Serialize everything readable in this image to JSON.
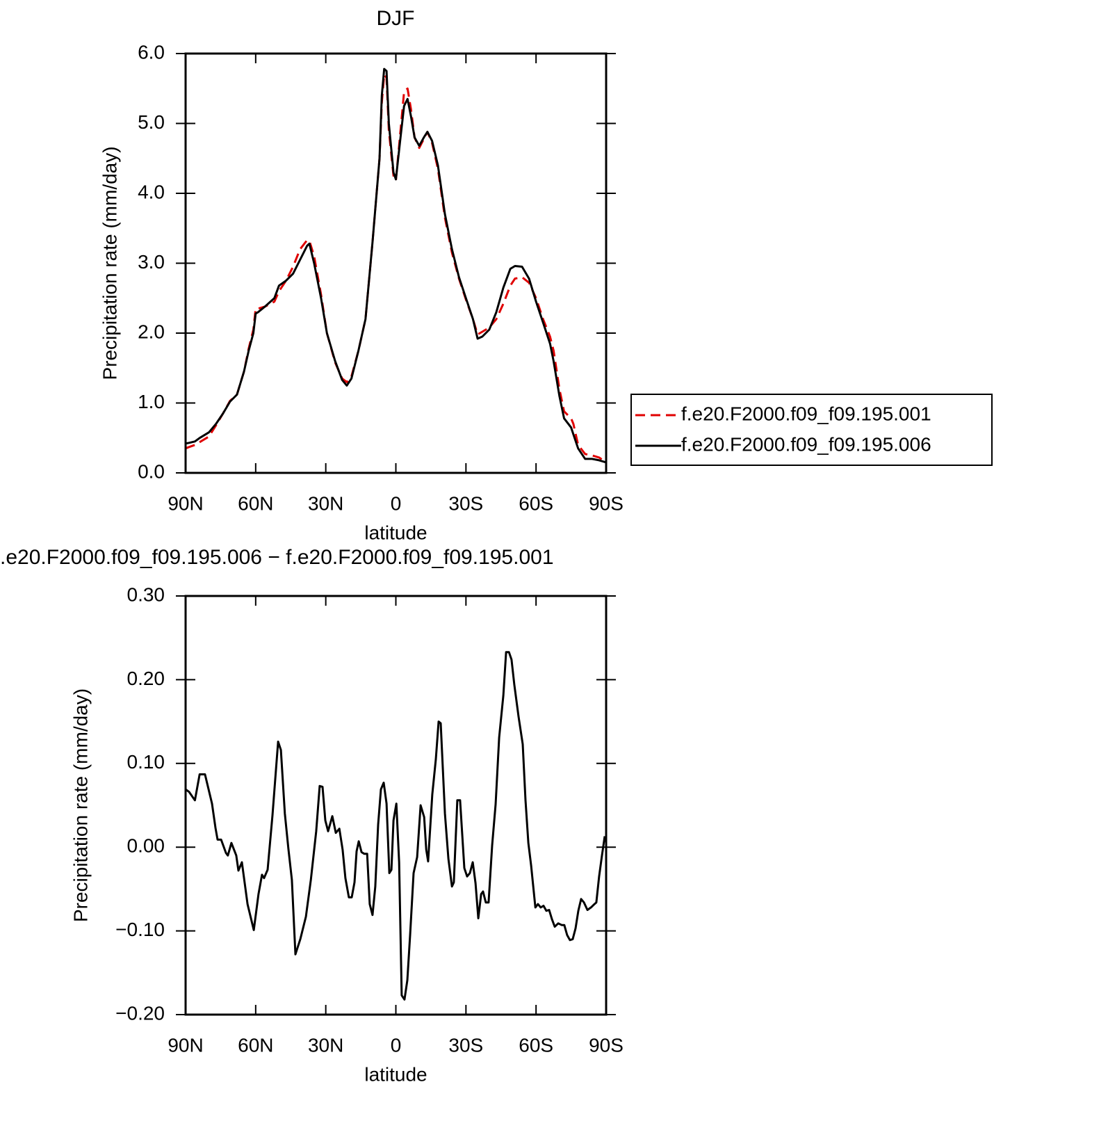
{
  "chart_data": [
    {
      "type": "line",
      "title": "DJF",
      "xlabel": "latitude",
      "ylabel": "Precipitation rate (mm/day)",
      "x": [
        90,
        88.5,
        86,
        84,
        80,
        77,
        74,
        71,
        68,
        65,
        63,
        61,
        60,
        59,
        56,
        52,
        50,
        47,
        44,
        41,
        38,
        37,
        35,
        32,
        29.5,
        26,
        23,
        21,
        19,
        16,
        13,
        10,
        7,
        6,
        5,
        4,
        3,
        1,
        0,
        -2,
        -3.5,
        -5,
        -6.5,
        -8,
        -10,
        -12,
        -13.5,
        -15.5,
        -18,
        -21,
        -24,
        -27,
        -30,
        -33,
        -35,
        -37,
        -40,
        -43,
        -46,
        -49,
        -51,
        -54,
        -57,
        -60,
        -63,
        -66,
        -67.5,
        -70,
        -72,
        -75,
        -76,
        -78,
        -81,
        -84,
        -87,
        -90
      ],
      "series": [
        {
          "name": "f.e20.F2000.f09_f09.195.001",
          "color": "#e00000",
          "dashed": true,
          "values": [
            0.35,
            0.37,
            0.4,
            0.44,
            0.52,
            0.68,
            0.85,
            1.03,
            1.12,
            1.45,
            1.78,
            2.05,
            2.35,
            2.35,
            2.38,
            2.45,
            2.6,
            2.75,
            2.95,
            3.2,
            3.33,
            3.32,
            3.1,
            2.55,
            2.0,
            1.58,
            1.35,
            1.3,
            1.38,
            1.75,
            2.2,
            3.3,
            4.5,
            5.3,
            5.7,
            5.65,
            4.9,
            4.25,
            4.18,
            4.9,
            5.45,
            5.5,
            5.2,
            4.8,
            4.65,
            4.78,
            4.88,
            4.72,
            4.35,
            3.65,
            3.15,
            2.78,
            2.48,
            2.2,
            1.98,
            2.02,
            2.08,
            2.2,
            2.42,
            2.68,
            2.78,
            2.8,
            2.72,
            2.5,
            2.2,
            1.95,
            1.75,
            1.2,
            0.88,
            0.78,
            0.7,
            0.4,
            0.27,
            0.25,
            0.22,
            0.15
          ]
        },
        {
          "name": "f.e20.F2000.f09_f09.195.006",
          "color": "#000000",
          "dashed": false,
          "values": [
            0.42,
            0.43,
            0.45,
            0.5,
            0.58,
            0.7,
            0.85,
            1.02,
            1.12,
            1.45,
            1.75,
            2.0,
            2.28,
            2.3,
            2.38,
            2.5,
            2.68,
            2.75,
            2.85,
            3.05,
            3.25,
            3.28,
            3.0,
            2.5,
            2.0,
            1.6,
            1.33,
            1.25,
            1.35,
            1.75,
            2.2,
            3.3,
            4.5,
            5.4,
            5.78,
            5.75,
            5.0,
            4.3,
            4.2,
            4.8,
            5.25,
            5.35,
            5.1,
            4.8,
            4.68,
            4.8,
            4.88,
            4.75,
            4.4,
            3.7,
            3.2,
            2.8,
            2.5,
            2.2,
            1.92,
            1.95,
            2.05,
            2.3,
            2.65,
            2.92,
            2.96,
            2.95,
            2.78,
            2.45,
            2.15,
            1.85,
            1.6,
            1.1,
            0.78,
            0.65,
            0.55,
            0.35,
            0.2,
            0.2,
            0.18,
            0.15
          ]
        }
      ],
      "xlim": [
        90,
        -90
      ],
      "xticks": [
        {
          "value": 90,
          "label": "90N"
        },
        {
          "value": 60,
          "label": "60N"
        },
        {
          "value": 30,
          "label": "30N"
        },
        0,
        {
          "value": -30,
          "label": "30S"
        },
        {
          "value": -60,
          "label": "60S"
        },
        {
          "value": -90,
          "label": "90S"
        }
      ],
      "ylim": [
        0,
        6
      ],
      "yticks": [
        {
          "value": 0,
          "label": "0.0"
        },
        {
          "value": 1,
          "label": "1.0"
        },
        {
          "value": 2,
          "label": "2.0"
        },
        {
          "value": 3,
          "label": "3.0"
        },
        {
          "value": 4,
          "label": "4.0"
        },
        {
          "value": 5,
          "label": "5.0"
        },
        {
          "value": 6,
          "label": "6.0"
        }
      ],
      "legend": "outside-right"
    },
    {
      "type": "line",
      "title": ".e20.F2000.f09_f09.195.006 − f.e20.F2000.f09_f09.195.001",
      "xlabel": "latitude",
      "ylabel": "Precipitation rate (mm/day)",
      "x": [
        90,
        88.5,
        86,
        84,
        81.7,
        78.7,
        77.2,
        76.3,
        74.8,
        72.7,
        71.9,
        70.4,
        68.3,
        67.4,
        65.9,
        63.5,
        60.8,
        58.8,
        57.3,
        56.4,
        54.9,
        52.8,
        50.4,
        49.2,
        47.5,
        46.0,
        44.5,
        43.0,
        40.9,
        38.5,
        36.4,
        34.1,
        32.6,
        31.4,
        30.2,
        29.0,
        27.2,
        25.7,
        24.2,
        22.8,
        21.6,
        20.1,
        18.9,
        17.7,
        16.8,
        15.9,
        14.7,
        13.5,
        12.3,
        11.2,
        10.0,
        8.8,
        7.6,
        6.4,
        5.2,
        4.0,
        2.8,
        1.9,
        1.0,
        -0.2,
        -1.4,
        -2.5,
        -3.7,
        -4.9,
        -6.1,
        -7.6,
        -9.1,
        -10.6,
        -12.1,
        -13.0,
        -13.8,
        -15.6,
        -17.1,
        -18.3,
        -19.2,
        -21.0,
        -22.5,
        -24.0,
        -24.8,
        -26.3,
        -27.5,
        -29.3,
        -30.5,
        -31.7,
        -32.9,
        -34.1,
        -35.3,
        -36.5,
        -37.3,
        -38.5,
        -39.7,
        -41.2,
        -42.7,
        -44.2,
        -46.0,
        -47.2,
        -48.4,
        -49.5,
        -50.7,
        -52.5,
        -54.3,
        -55.5,
        -56.7,
        -57.9,
        -59.7,
        -60.8,
        -62.0,
        -63.2,
        -64.4,
        -65.6,
        -66.8,
        -68.0,
        -69.5,
        -71.0,
        -72.1,
        -73.3,
        -74.5,
        -75.7,
        -76.9,
        -78.1,
        -79.3,
        -80.5,
        -82.0,
        -83.5,
        -85.0,
        -85.8,
        -87.0,
        -88.2,
        -89.4
      ],
      "series": [
        {
          "color": "#000000",
          "dashed": false,
          "values": [
            0.069,
            0.066,
            0.056,
            0.087,
            0.087,
            0.052,
            0.023,
            0.009,
            0.009,
            -0.007,
            -0.01,
            0.005,
            -0.01,
            -0.028,
            -0.018,
            -0.068,
            -0.099,
            -0.056,
            -0.033,
            -0.037,
            -0.027,
            0.038,
            0.126,
            0.116,
            0.04,
            -0.002,
            -0.039,
            -0.128,
            -0.11,
            -0.083,
            -0.039,
            0.019,
            0.073,
            0.072,
            0.032,
            0.019,
            0.037,
            0.017,
            0.022,
            -0.003,
            -0.037,
            -0.06,
            -0.06,
            -0.042,
            -0.005,
            0.007,
            -0.006,
            -0.008,
            -0.008,
            -0.068,
            -0.081,
            -0.047,
            0.027,
            0.069,
            0.077,
            0.052,
            -0.031,
            -0.027,
            0.032,
            0.052,
            -0.018,
            -0.177,
            -0.182,
            -0.159,
            -0.105,
            -0.031,
            -0.012,
            0.05,
            0.036,
            -0.003,
            -0.017,
            0.063,
            0.105,
            0.15,
            0.148,
            0.04,
            -0.014,
            -0.047,
            -0.042,
            0.056,
            0.056,
            -0.025,
            -0.035,
            -0.031,
            -0.018,
            -0.043,
            -0.085,
            -0.056,
            -0.053,
            -0.066,
            -0.066,
            0.002,
            0.051,
            0.131,
            0.181,
            0.233,
            0.233,
            0.224,
            0.194,
            0.156,
            0.123,
            0.056,
            0.005,
            -0.022,
            -0.072,
            -0.068,
            -0.072,
            -0.07,
            -0.076,
            -0.075,
            -0.086,
            -0.095,
            -0.091,
            -0.093,
            -0.093,
            -0.105,
            -0.111,
            -0.11,
            -0.097,
            -0.076,
            -0.062,
            -0.066,
            -0.075,
            -0.072,
            -0.068,
            -0.066,
            -0.035,
            -0.01,
            0.013
          ]
        }
      ],
      "xlim": [
        90,
        -90
      ],
      "xticks": [
        {
          "value": 90,
          "label": "90N"
        },
        {
          "value": 60,
          "label": "60N"
        },
        {
          "value": 30,
          "label": "30N"
        },
        0,
        {
          "value": -30,
          "label": "30S"
        },
        {
          "value": -60,
          "label": "60S"
        },
        {
          "value": -90,
          "label": "90S"
        }
      ],
      "ylim": [
        -0.2,
        0.3
      ],
      "yticks": [
        {
          "value": -0.2,
          "label": "−0.20"
        },
        {
          "value": -0.1,
          "label": "−0.10"
        },
        {
          "value": 0,
          "label": "0.00"
        },
        {
          "value": 0.1,
          "label": "0.10"
        },
        {
          "value": 0.2,
          "label": "0.20"
        },
        {
          "value": 0.3,
          "label": "0.30"
        }
      ]
    }
  ]
}
